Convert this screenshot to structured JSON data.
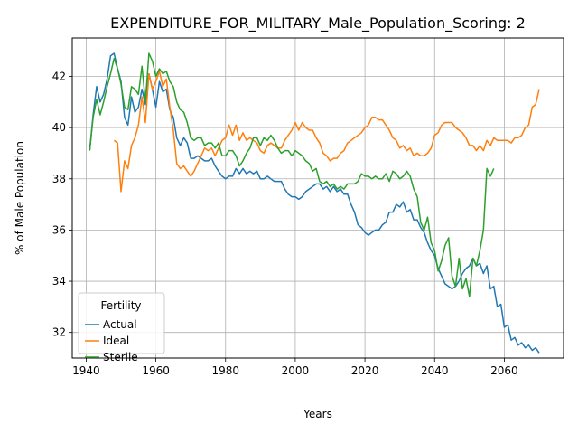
{
  "chart_data": {
    "type": "line",
    "title": "EXPENDITURE_FOR_MILITARY_Male_Population_Scoring: 2",
    "xlabel": "Years",
    "ylabel": "% of Male Population",
    "xlim": [
      1936,
      2077
    ],
    "ylim": [
      31.0,
      43.5
    ],
    "xticks": [
      1940,
      1960,
      1980,
      2000,
      2020,
      2040,
      2060
    ],
    "yticks": [
      32,
      34,
      36,
      38,
      40,
      42
    ],
    "grid": true,
    "legend": {
      "title": "Fertility",
      "position": "lower-left"
    },
    "series": [
      {
        "name": "Actual",
        "color": "#1f77b4",
        "x": [
          1941,
          1942,
          1943,
          1944,
          1945,
          1946,
          1947,
          1948,
          1949,
          1950,
          1951,
          1952,
          1953,
          1954,
          1955,
          1956,
          1957,
          1958,
          1959,
          1960,
          1961,
          1962,
          1963,
          1964,
          1965,
          1966,
          1967,
          1968,
          1969,
          1970,
          1971,
          1972,
          1973,
          1974,
          1975,
          1976,
          1977,
          1978,
          1979,
          1980,
          1981,
          1982,
          1983,
          1984,
          1985,
          1986,
          1987,
          1988,
          1989,
          1990,
          1991,
          1992,
          1993,
          1994,
          1995,
          1996,
          1997,
          1998,
          1999,
          2000,
          2001,
          2002,
          2003,
          2004,
          2005,
          2006,
          2007,
          2008,
          2009,
          2010,
          2011,
          2012,
          2013,
          2014,
          2015,
          2016,
          2017,
          2018,
          2019,
          2020,
          2021,
          2022,
          2023,
          2024,
          2025,
          2026,
          2027,
          2028,
          2029,
          2030,
          2031,
          2032,
          2033,
          2034,
          2035,
          2036,
          2037,
          2038,
          2039,
          2040,
          2041,
          2042,
          2043,
          2044,
          2045,
          2046,
          2047,
          2048,
          2049,
          2050,
          2051,
          2052,
          2053,
          2054,
          2055,
          2056,
          2057,
          2058,
          2059,
          2060,
          2061,
          2062,
          2063,
          2064,
          2065,
          2066,
          2067,
          2068,
          2069,
          2070
        ],
        "y": [
          39.1,
          40.5,
          41.6,
          41.0,
          41.3,
          41.9,
          42.8,
          42.9,
          42.3,
          41.8,
          40.4,
          40.1,
          41.2,
          40.6,
          40.8,
          41.5,
          40.9,
          42.1,
          41.5,
          40.8,
          41.8,
          41.4,
          41.5,
          40.7,
          40.4,
          39.6,
          39.3,
          39.6,
          39.4,
          38.8,
          38.8,
          38.9,
          38.8,
          38.7,
          38.7,
          38.8,
          38.5,
          38.3,
          38.1,
          38.0,
          38.1,
          38.1,
          38.4,
          38.2,
          38.4,
          38.2,
          38.3,
          38.2,
          38.3,
          38.0,
          38.0,
          38.1,
          38.0,
          37.9,
          37.9,
          37.9,
          37.6,
          37.4,
          37.3,
          37.3,
          37.2,
          37.3,
          37.5,
          37.6,
          37.7,
          37.8,
          37.8,
          37.6,
          37.7,
          37.5,
          37.7,
          37.5,
          37.6,
          37.4,
          37.4,
          37.0,
          36.7,
          36.2,
          36.1,
          35.9,
          35.8,
          35.9,
          36.0,
          36.0,
          36.2,
          36.3,
          36.7,
          36.7,
          37.0,
          36.9,
          37.1,
          36.7,
          36.8,
          36.4,
          36.4,
          36.1,
          35.9,
          35.5,
          35.2,
          35.0,
          34.5,
          34.2,
          33.9,
          33.8,
          33.7,
          33.8,
          34.0,
          34.3,
          34.5,
          34.6,
          34.9,
          34.6,
          34.7,
          34.3,
          34.6,
          33.7,
          33.8,
          33.0,
          33.1,
          32.2,
          32.3,
          31.7,
          31.8,
          31.5,
          31.6,
          31.4,
          31.5,
          31.3,
          31.4,
          31.2
        ]
      },
      {
        "name": "Ideal",
        "color": "#ff7f0e",
        "x": [
          1948,
          1949,
          1950,
          1951,
          1952,
          1953,
          1954,
          1955,
          1956,
          1957,
          1958,
          1959,
          1960,
          1961,
          1962,
          1963,
          1964,
          1965,
          1966,
          1967,
          1968,
          1969,
          1970,
          1971,
          1972,
          1973,
          1974,
          1975,
          1976,
          1977,
          1978,
          1979,
          1980,
          1981,
          1982,
          1983,
          1984,
          1985,
          1986,
          1987,
          1988,
          1989,
          1990,
          1991,
          1992,
          1993,
          1994,
          1995,
          1996,
          1997,
          1998,
          1999,
          2000,
          2001,
          2002,
          2003,
          2004,
          2005,
          2006,
          2007,
          2008,
          2009,
          2010,
          2011,
          2012,
          2013,
          2014,
          2015,
          2016,
          2017,
          2018,
          2019,
          2020,
          2021,
          2022,
          2023,
          2024,
          2025,
          2026,
          2027,
          2028,
          2029,
          2030,
          2031,
          2032,
          2033,
          2034,
          2035,
          2036,
          2037,
          2038,
          2039,
          2040,
          2041,
          2042,
          2043,
          2044,
          2045,
          2046,
          2047,
          2048,
          2049,
          2050,
          2051,
          2052,
          2053,
          2054,
          2055,
          2056,
          2057,
          2058,
          2059,
          2060,
          2061,
          2062,
          2063,
          2064,
          2065,
          2066,
          2067,
          2068,
          2069,
          2070
        ],
        "y": [
          39.5,
          39.4,
          37.5,
          38.7,
          38.4,
          39.3,
          39.6,
          40.1,
          41.2,
          40.2,
          42.1,
          41.5,
          41.8,
          42.2,
          41.6,
          41.9,
          40.8,
          39.9,
          38.6,
          38.4,
          38.5,
          38.3,
          38.1,
          38.3,
          38.6,
          38.9,
          39.2,
          39.1,
          39.2,
          38.9,
          39.2,
          39.5,
          39.6,
          40.1,
          39.7,
          40.1,
          39.5,
          39.8,
          39.5,
          39.6,
          39.5,
          39.4,
          39.1,
          39.0,
          39.3,
          39.4,
          39.3,
          39.2,
          39.2,
          39.5,
          39.7,
          39.9,
          40.2,
          39.9,
          40.2,
          40.0,
          39.9,
          39.9,
          39.6,
          39.4,
          39.0,
          38.9,
          38.7,
          38.8,
          38.8,
          39.0,
          39.1,
          39.4,
          39.5,
          39.6,
          39.7,
          39.8,
          40.0,
          40.1,
          40.4,
          40.4,
          40.3,
          40.3,
          40.1,
          39.9,
          39.6,
          39.5,
          39.2,
          39.3,
          39.1,
          39.2,
          38.9,
          39.0,
          38.9,
          38.9,
          39.0,
          39.2,
          39.7,
          39.8,
          40.1,
          40.2,
          40.2,
          40.2,
          40.0,
          39.9,
          39.8,
          39.6,
          39.3,
          39.3,
          39.1,
          39.3,
          39.1,
          39.5,
          39.3,
          39.6,
          39.5,
          39.5,
          39.5,
          39.5,
          39.4,
          39.6,
          39.6,
          39.7,
          40.0,
          40.1,
          40.8,
          40.9,
          41.5
        ]
      },
      {
        "name": "Sterile",
        "color": "#2ca02c",
        "x": [
          1941,
          1942,
          1943,
          1944,
          1945,
          1946,
          1947,
          1948,
          1949,
          1950,
          1951,
          1952,
          1953,
          1954,
          1955,
          1956,
          1957,
          1958,
          1959,
          1960,
          1961,
          1962,
          1963,
          1964,
          1965,
          1966,
          1967,
          1968,
          1969,
          1970,
          1971,
          1972,
          1973,
          1974,
          1975,
          1976,
          1977,
          1978,
          1979,
          1980,
          1981,
          1982,
          1983,
          1984,
          1985,
          1986,
          1987,
          1988,
          1989,
          1990,
          1991,
          1992,
          1993,
          1994,
          1995,
          1996,
          1997,
          1998,
          1999,
          2000,
          2001,
          2002,
          2003,
          2004,
          2005,
          2006,
          2007,
          2008,
          2009,
          2010,
          2011,
          2012,
          2013,
          2014,
          2015,
          2016,
          2017,
          2018,
          2019,
          2020,
          2021,
          2022,
          2023,
          2024,
          2025,
          2026,
          2027,
          2028,
          2029,
          2030,
          2031,
          2032,
          2033,
          2034,
          2035,
          2036,
          2037,
          2038,
          2039,
          2040,
          2041,
          2042,
          2043,
          2044,
          2045,
          2046,
          2047,
          2048,
          2049,
          2050,
          2051,
          2052,
          2053,
          2054,
          2055,
          2056,
          2057,
          2058
        ],
        "y": [
          39.1,
          40.4,
          41.1,
          40.5,
          41.0,
          41.6,
          42.1,
          42.7,
          42.3,
          41.7,
          40.8,
          40.7,
          41.6,
          41.5,
          41.3,
          42.4,
          41.0,
          42.9,
          42.6,
          42.0,
          42.3,
          42.1,
          42.2,
          41.8,
          41.6,
          41.0,
          40.7,
          40.6,
          40.2,
          39.6,
          39.5,
          39.6,
          39.6,
          39.3,
          39.4,
          39.4,
          39.2,
          39.4,
          38.9,
          38.9,
          39.1,
          39.1,
          38.9,
          38.5,
          38.7,
          39.0,
          39.2,
          39.6,
          39.6,
          39.3,
          39.6,
          39.5,
          39.7,
          39.5,
          39.2,
          39.0,
          39.1,
          39.1,
          38.9,
          39.1,
          39.0,
          38.9,
          38.7,
          38.6,
          38.3,
          38.4,
          37.9,
          37.8,
          37.9,
          37.7,
          37.8,
          37.6,
          37.7,
          37.6,
          37.8,
          37.8,
          37.8,
          37.9,
          38.2,
          38.1,
          38.1,
          38.0,
          38.1,
          38.0,
          38.0,
          38.2,
          37.9,
          38.3,
          38.2,
          38.0,
          38.1,
          38.3,
          38.1,
          37.6,
          37.3,
          36.3,
          36.0,
          36.5,
          35.5,
          35.2,
          34.4,
          34.8,
          35.4,
          35.7,
          34.2,
          33.8,
          34.9,
          33.7,
          34.1,
          33.4,
          34.9,
          34.6,
          35.2,
          36.0,
          38.4,
          38.1,
          38.4,
          null
        ]
      }
    ]
  }
}
